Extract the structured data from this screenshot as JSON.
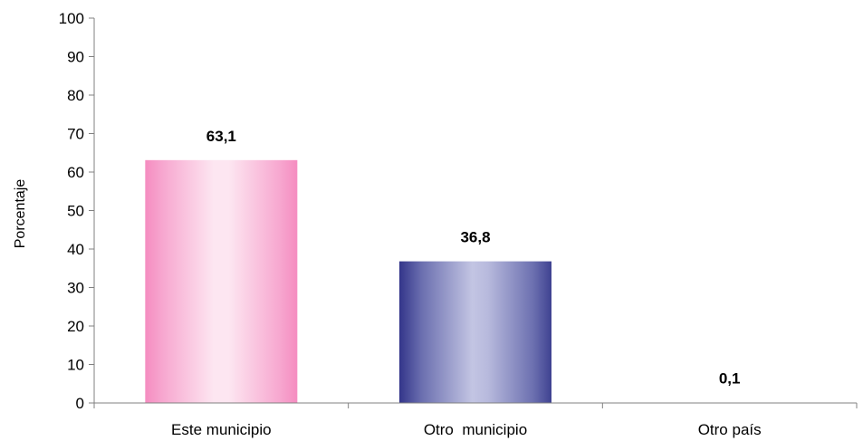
{
  "chart_data": {
    "type": "bar",
    "title": "",
    "xlabel": "",
    "ylabel": "Porcentaje",
    "ylim": [
      0,
      100
    ],
    "yticks": [
      0,
      10,
      20,
      30,
      40,
      50,
      60,
      70,
      80,
      90,
      100
    ],
    "categories": [
      "Este municipio",
      "Otro  municipio",
      "Otro país"
    ],
    "values": [
      63.1,
      36.8,
      0.1
    ],
    "data_labels": [
      "63,1",
      "36,8",
      "0,1"
    ],
    "bar_colors": [
      "#f9a8d4",
      "#6b6fae",
      "#f9a8d4"
    ],
    "grid": false,
    "legend": "none"
  }
}
